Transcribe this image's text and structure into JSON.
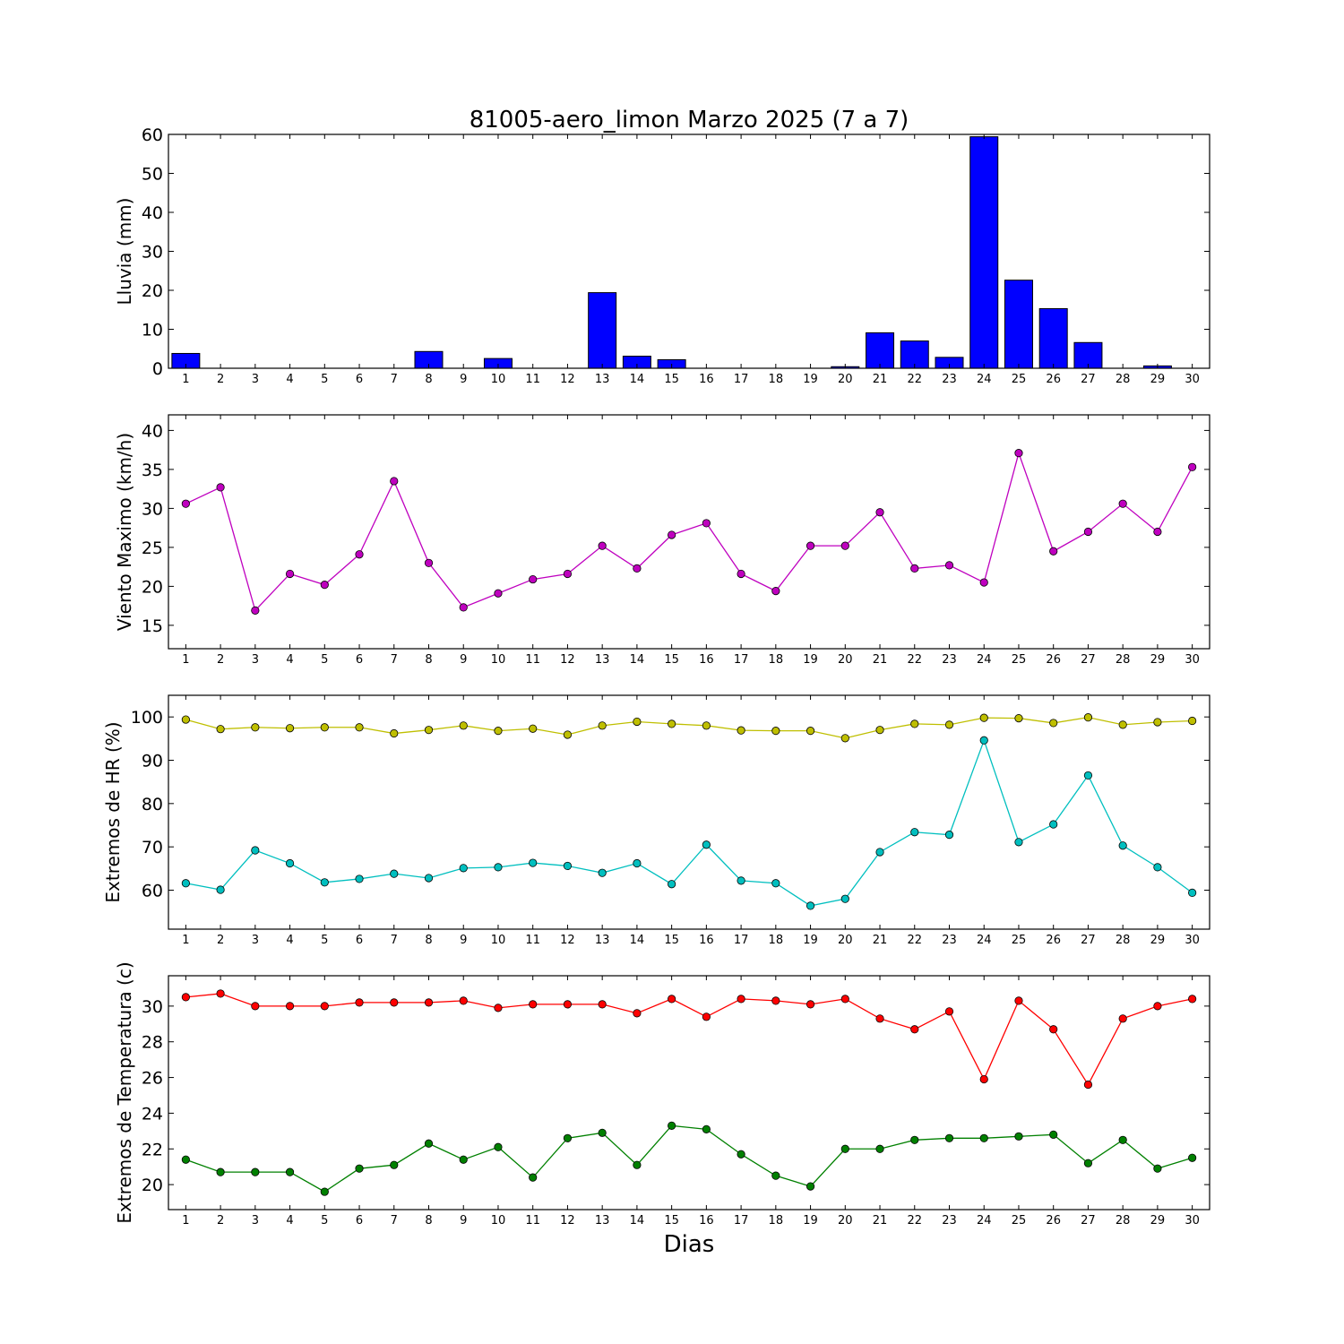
{
  "chart_data": [
    {
      "type": "bar",
      "title": "81005-aero_limon Marzo 2025  (7 a 7)",
      "ylabel": "Lluvia (mm)",
      "xlabel": "",
      "ylim": [
        0,
        60
      ],
      "yticks": [
        0,
        10,
        20,
        30,
        40,
        50,
        60
      ],
      "categories": [
        1,
        2,
        3,
        4,
        5,
        6,
        7,
        8,
        9,
        10,
        11,
        12,
        13,
        14,
        15,
        16,
        17,
        18,
        19,
        20,
        21,
        22,
        23,
        24,
        25,
        26,
        27,
        28,
        29,
        30
      ],
      "series": [
        {
          "color": "#0000ff",
          "values": [
            3.8,
            0,
            0,
            0,
            0,
            0,
            0,
            4.3,
            0,
            2.5,
            0,
            0,
            19.4,
            3.1,
            2.2,
            0,
            0,
            0,
            0,
            0.4,
            9.1,
            7.0,
            2.8,
            59.4,
            22.6,
            15.3,
            6.6,
            0,
            0.6,
            0
          ]
        }
      ]
    },
    {
      "type": "line",
      "ylabel": "Viento Maximo (km/h)",
      "xlabel": "",
      "ylim": [
        12,
        42
      ],
      "yticks": [
        15,
        20,
        25,
        30,
        35,
        40
      ],
      "categories": [
        1,
        2,
        3,
        4,
        5,
        6,
        7,
        8,
        9,
        10,
        11,
        12,
        13,
        14,
        15,
        16,
        17,
        18,
        19,
        20,
        21,
        22,
        23,
        24,
        25,
        26,
        27,
        28,
        29,
        30
      ],
      "series": [
        {
          "color": "#bf00bf",
          "values": [
            30.6,
            32.7,
            16.9,
            21.6,
            20.2,
            24.1,
            33.5,
            23.0,
            17.3,
            19.1,
            20.9,
            21.6,
            25.2,
            22.3,
            26.6,
            28.1,
            21.6,
            19.4,
            25.2,
            25.2,
            29.5,
            22.3,
            22.7,
            20.5,
            37.1,
            24.5,
            27.0,
            30.6,
            27.0,
            35.3
          ]
        }
      ]
    },
    {
      "type": "line",
      "ylabel": "Extremos de HR (%)",
      "xlabel": "",
      "ylim": [
        51,
        105
      ],
      "yticks": [
        60,
        70,
        80,
        90,
        100
      ],
      "categories": [
        1,
        2,
        3,
        4,
        5,
        6,
        7,
        8,
        9,
        10,
        11,
        12,
        13,
        14,
        15,
        16,
        17,
        18,
        19,
        20,
        21,
        22,
        23,
        24,
        25,
        26,
        27,
        28,
        29,
        30
      ],
      "series": [
        {
          "color": "#bfbf00",
          "values": [
            99.4,
            97.2,
            97.6,
            97.4,
            97.6,
            97.6,
            96.2,
            97.0,
            98.0,
            96.8,
            97.3,
            95.9,
            98.0,
            98.9,
            98.4,
            98.0,
            96.9,
            96.8,
            96.8,
            95.1,
            97.0,
            98.4,
            98.2,
            99.8,
            99.7,
            98.6,
            99.9,
            98.2,
            98.8,
            99.1
          ]
        },
        {
          "color": "#00bfbf",
          "values": [
            61.6,
            60.1,
            69.2,
            66.2,
            61.8,
            62.6,
            63.8,
            62.8,
            65.1,
            65.3,
            66.3,
            65.6,
            64.0,
            66.2,
            61.4,
            70.5,
            62.2,
            61.6,
            56.4,
            58.0,
            68.8,
            73.4,
            72.8,
            94.6,
            71.1,
            75.2,
            86.5,
            70.3,
            65.3,
            59.4
          ]
        }
      ]
    },
    {
      "type": "line",
      "ylabel": "Extremos de Temperatura (c)",
      "xlabel": "Dias",
      "ylim": [
        18.6,
        31.7
      ],
      "yticks": [
        20,
        22,
        24,
        26,
        28,
        30
      ],
      "categories": [
        1,
        2,
        3,
        4,
        5,
        6,
        7,
        8,
        9,
        10,
        11,
        12,
        13,
        14,
        15,
        16,
        17,
        18,
        19,
        20,
        21,
        22,
        23,
        24,
        25,
        26,
        27,
        28,
        29,
        30
      ],
      "series": [
        {
          "color": "#ff0000",
          "values": [
            30.5,
            30.7,
            30.0,
            30.0,
            30.0,
            30.2,
            30.2,
            30.2,
            30.3,
            29.9,
            30.1,
            30.1,
            30.1,
            29.6,
            30.4,
            29.4,
            30.4,
            30.3,
            30.1,
            30.4,
            29.3,
            28.7,
            29.7,
            25.9,
            30.3,
            28.7,
            25.6,
            29.3,
            30.0,
            30.4
          ]
        },
        {
          "color": "#008000",
          "values": [
            21.4,
            20.7,
            20.7,
            20.7,
            19.6,
            20.9,
            21.1,
            22.3,
            21.4,
            22.1,
            20.4,
            22.6,
            22.9,
            21.1,
            23.3,
            23.1,
            21.7,
            20.5,
            19.9,
            22.0,
            22.0,
            22.5,
            22.6,
            22.6,
            22.7,
            22.8,
            21.2,
            22.5,
            20.9,
            21.5
          ]
        }
      ]
    }
  ]
}
